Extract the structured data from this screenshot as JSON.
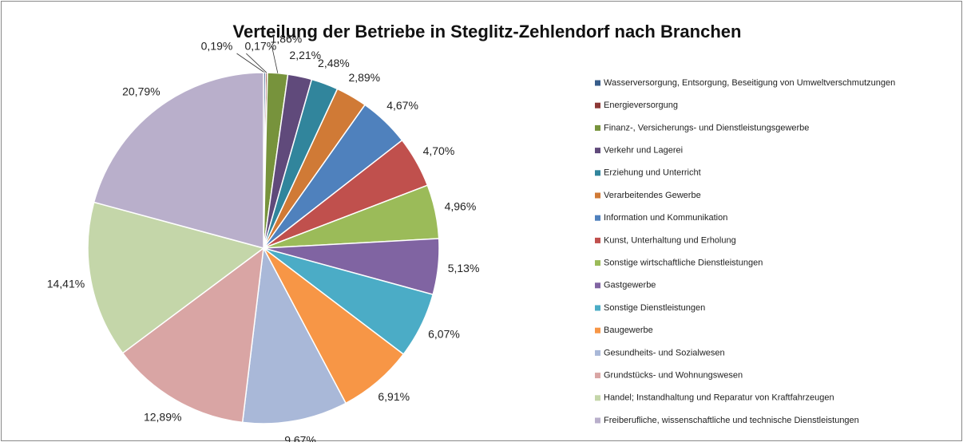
{
  "chart_data": {
    "type": "pie",
    "title": "Verteilung der Betriebe in Steglitz-Zehlendorf nach Branchen",
    "categories": [
      "Wasserversorgung, Entsorgung, Beseitigung von Umweltverschmutzungen",
      "Energieversorgung",
      "Finanz-, Versicherungs- und Dienstleistungsgewerbe",
      "Verkehr und Lagerei",
      "Erziehung und Unterricht",
      "Verarbeitendes Gewerbe",
      "Information und Kommunikation",
      "Kunst, Unterhaltung und Erholung",
      "Sonstige wirtschaftliche Dienstleistungen",
      "Gastgewerbe",
      "Sonstige Dienstleistungen",
      "Baugewerbe",
      "Gesundheits- und Sozialwesen",
      "Grundstücks- und Wohnungswesen",
      "Handel; Instandhaltung und Reparatur von Kraftfahrzeugen",
      "Freiberufliche, wissenschaftliche und technische Dienstleistungen"
    ],
    "values": [
      0.19,
      0.17,
      1.86,
      2.21,
      2.48,
      2.89,
      4.67,
      4.7,
      4.96,
      5.13,
      6.07,
      6.91,
      9.67,
      12.89,
      14.41,
      20.79
    ],
    "value_labels": [
      "0,19%",
      "0,17%",
      "1,86%",
      "2,21%",
      "2,48%",
      "2,89%",
      "4,67%",
      "4,70%",
      "4,96%",
      "5,13%",
      "6,07%",
      "6,91%",
      "9,67%",
      "12,89%",
      "14,41%",
      "20,79%"
    ],
    "colors": [
      "#385d8a",
      "#8c3836",
      "#77933c",
      "#604a7b",
      "#31859c",
      "#d07a36",
      "#4f81bd",
      "#c0504d",
      "#9bbb59",
      "#8064a2",
      "#4bacc6",
      "#f79646",
      "#a9b8d8",
      "#d9a5a4",
      "#c4d6a9",
      "#b9afcb"
    ],
    "legend": "right"
  }
}
